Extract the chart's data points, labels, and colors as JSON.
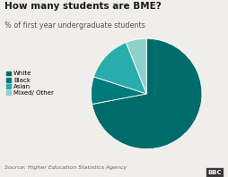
{
  "title": "How many students are BME?",
  "subtitle": "% of first year undergraduate students",
  "source": "Source: Higher Education Statistics Agency",
  "labels": [
    "White",
    "Black",
    "Asian",
    "Mixed/ Other"
  ],
  "values": [
    72,
    8,
    14,
    6
  ],
  "colors": [
    "#006b6b",
    "#007a7a",
    "#2aacac",
    "#8dd0cc"
  ],
  "startangle": 90,
  "background_color": "#f0eeeb",
  "title_fontsize": 7.5,
  "subtitle_fontsize": 5.8,
  "source_fontsize": 4.5,
  "legend_fontsize": 5.0
}
